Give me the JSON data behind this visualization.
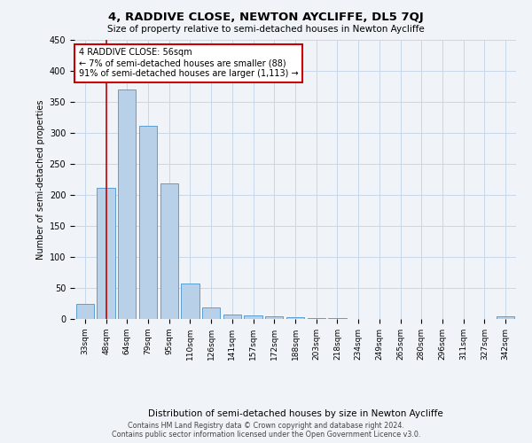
{
  "title": "4, RADDIVE CLOSE, NEWTON AYCLIFFE, DL5 7QJ",
  "subtitle": "Size of property relative to semi-detached houses in Newton Aycliffe",
  "xlabel": "Distribution of semi-detached houses by size in Newton Aycliffe",
  "ylabel": "Number of semi-detached properties",
  "categories": [
    "33sqm",
    "48sqm",
    "64sqm",
    "79sqm",
    "95sqm",
    "110sqm",
    "126sqm",
    "141sqm",
    "157sqm",
    "172sqm",
    "188sqm",
    "203sqm",
    "218sqm",
    "234sqm",
    "249sqm",
    "265sqm",
    "280sqm",
    "296sqm",
    "311sqm",
    "327sqm",
    "342sqm"
  ],
  "values": [
    25,
    212,
    370,
    311,
    219,
    57,
    19,
    7,
    6,
    4,
    3,
    1,
    1,
    0,
    0,
    0,
    0,
    0,
    0,
    0,
    5
  ],
  "bar_color": "#b8d0e8",
  "bar_edge_color": "#5a9fd4",
  "annotation_title": "4 RADDIVE CLOSE: 56sqm",
  "annotation_line1": "← 7% of semi-detached houses are smaller (88)",
  "annotation_line2": "91% of semi-detached houses are larger (1,113) →",
  "annotation_box_color": "#ffffff",
  "annotation_box_edge_color": "#cc0000",
  "vline_color": "#cc0000",
  "vline_x": 1.0,
  "ylim": [
    0,
    450
  ],
  "yticks": [
    0,
    50,
    100,
    150,
    200,
    250,
    300,
    350,
    400,
    450
  ],
  "footer_line1": "Contains HM Land Registry data © Crown copyright and database right 2024.",
  "footer_line2": "Contains public sector information licensed under the Open Government Licence v3.0.",
  "background_color": "#f0f4f8",
  "grid_color": "#c8d8e8"
}
